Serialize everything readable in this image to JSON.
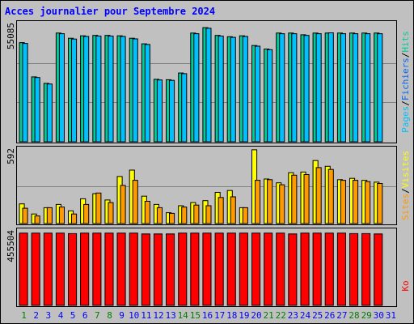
{
  "chart_data": {
    "type": "bar",
    "title": "Acces journalier pour Septembre 2024",
    "colors": {
      "background": "#c0c0c0",
      "title": "#0000ff",
      "hits": "#00cc99",
      "files": "#0066ff",
      "pages": "#00c0ff",
      "visits": "#ffff00",
      "sites": "#ff9900",
      "ko": "#ff0000",
      "weekend_label": "#008000",
      "weekday_label": "#0000ff"
    },
    "categories": [
      "1",
      "2",
      "3",
      "4",
      "5",
      "6",
      "7",
      "8",
      "9",
      "10",
      "11",
      "12",
      "13",
      "14",
      "15",
      "16",
      "17",
      "18",
      "19",
      "20",
      "21",
      "22",
      "23",
      "24",
      "25",
      "26",
      "27",
      "28",
      "29",
      "30",
      "31"
    ],
    "weekend_days": [
      1,
      7,
      8,
      14,
      15,
      21,
      22,
      28,
      29
    ],
    "panels": [
      {
        "id": "hits",
        "ymax_label": "55085",
        "ymax": 55085,
        "legend": [
          {
            "text": "Pages",
            "color": "#00c0ff"
          },
          {
            "text": "/",
            "color": "#000000"
          },
          {
            "text": "Fichiers",
            "color": "#0066ff"
          },
          {
            "text": "/",
            "color": "#000000"
          },
          {
            "text": "Hits",
            "color": "#00cc99"
          }
        ],
        "series": [
          {
            "key": "hits",
            "color": "#00cc99",
            "values": [
              45870,
              30000,
              27000,
              50300,
              47900,
              49000,
              49200,
              49200,
              49000,
              47900,
              45300,
              28900,
              28700,
              31800,
              50300,
              52800,
              49200,
              48600,
              49000,
              44500,
              42900,
              50300,
              50300,
              49500,
              50300,
              50300,
              50300,
              50300,
              50300,
              50300,
              0
            ]
          },
          {
            "key": "pages",
            "color": "#00c0ff",
            "values": [
              45500,
              29700,
              26700,
              50000,
              47500,
              48700,
              48900,
              48900,
              48700,
              47600,
              45000,
              28600,
              28400,
              31500,
              50000,
              52500,
              48900,
              48300,
              48700,
              44200,
              42600,
              50000,
              50000,
              49200,
              50000,
              50400,
              50000,
              50000,
              50000,
              50000,
              0
            ]
          }
        ]
      },
      {
        "id": "visits",
        "ymax_label": "592",
        "ymax": 592,
        "legend": [
          {
            "text": "Sites",
            "color": "#ff9900"
          },
          {
            "text": "/",
            "color": "#000000"
          },
          {
            "text": "Visites",
            "color": "#ffff00"
          }
        ],
        "series": [
          {
            "key": "visits",
            "color": "#ffff00",
            "values": [
              155,
              75,
              125,
              150,
              100,
              195,
              235,
              185,
              370,
              420,
              215,
              150,
              85,
              140,
              165,
              180,
              245,
              260,
              125,
              580,
              350,
              320,
              400,
              405,
              495,
              450,
              345,
              355,
              340,
              325,
              0
            ]
          },
          {
            "key": "sites",
            "color": "#ff9900",
            "values": [
              120,
              60,
              125,
              130,
              75,
              150,
              240,
              165,
              300,
              340,
              175,
              125,
              80,
              130,
              145,
              140,
              205,
              210,
              125,
              340,
              345,
              305,
              380,
              385,
              440,
              425,
              340,
              340,
              330,
              315,
              0
            ]
          }
        ]
      },
      {
        "id": "ko",
        "ymax_label": "455504",
        "ymax": 455504,
        "legend": [
          {
            "text": "Ko",
            "color": "#ff0000"
          }
        ],
        "series": [
          {
            "key": "ko",
            "color": "#ff0000",
            "values": [
              437000,
              437000,
              437000,
              437000,
              434000,
              437000,
              437000,
              437000,
              437000,
              437000,
              432000,
              432000,
              432000,
              437000,
              437000,
              437000,
              437000,
              437000,
              437000,
              437000,
              437000,
              437000,
              432000,
              437000,
              437000,
              437000,
              437000,
              434000,
              434000,
              432000,
              0
            ]
          }
        ]
      }
    ]
  }
}
